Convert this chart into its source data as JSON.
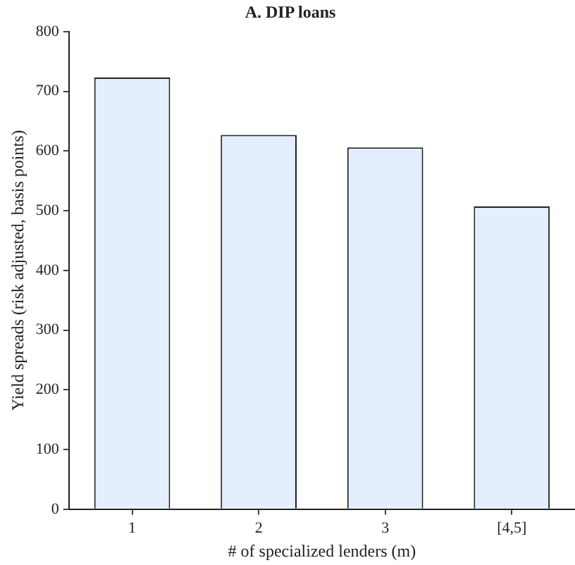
{
  "chart_data": {
    "type": "bar",
    "title": "A. DIP loans",
    "xlabel": "# of specialized lenders (m)",
    "ylabel": "Yield spreads (risk adjusted, basis points)",
    "categories": [
      "1",
      "2",
      "3",
      "[4,5]"
    ],
    "values": [
      723,
      627,
      606,
      507
    ],
    "color": "#e3efff",
    "ylim": [
      0,
      800
    ],
    "yticks": [
      0,
      100,
      200,
      300,
      400,
      500,
      600,
      700,
      800
    ],
    "grid": false,
    "legend": false
  }
}
